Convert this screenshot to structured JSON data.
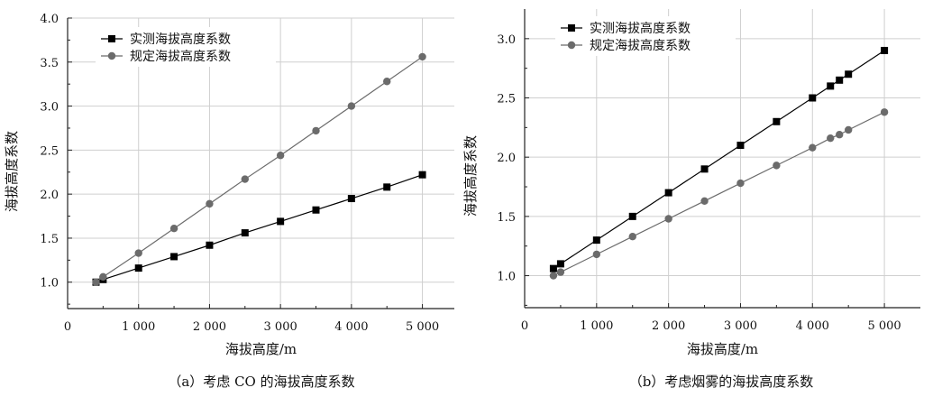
{
  "chart_data": [
    {
      "type": "line",
      "panel": "a",
      "caption": "（a）考虑 CO 的海拔高度系数",
      "xlabel": "海拔高度/m",
      "ylabel": "海拔高度系数",
      "xlim": [
        0,
        5450
      ],
      "ylim": [
        0.7,
        4.0
      ],
      "xticks": [
        0,
        1000,
        2000,
        3000,
        4000,
        5000
      ],
      "xtick_labels": [
        "0",
        "1 000",
        "2 000",
        "3 000",
        "4 000",
        "5 000"
      ],
      "yticks": [
        1.0,
        1.5,
        2.0,
        2.5,
        3.0,
        3.5,
        4.0
      ],
      "ytick_labels": [
        "1.0",
        "1.5",
        "2.0",
        "2.5",
        "3.0",
        "3.5",
        "4.0"
      ],
      "grid": true,
      "legend_position": "top-left",
      "series": [
        {
          "name": "实测海拔高度系数",
          "marker": "square",
          "color": "#000000",
          "x": [
            400,
            500,
            1000,
            1500,
            2000,
            2500,
            3000,
            3500,
            4000,
            4500,
            5000
          ],
          "y": [
            1.0,
            1.03,
            1.16,
            1.29,
            1.42,
            1.56,
            1.69,
            1.82,
            1.95,
            2.08,
            2.22
          ]
        },
        {
          "name": "规定海拔高度系数",
          "marker": "circle",
          "color": "#6b6b6b",
          "x": [
            400,
            500,
            1000,
            1500,
            2000,
            2500,
            3000,
            3500,
            4000,
            4500,
            5000
          ],
          "y": [
            1.0,
            1.06,
            1.33,
            1.61,
            1.89,
            2.17,
            2.44,
            2.72,
            3.0,
            3.28,
            3.56
          ]
        }
      ]
    },
    {
      "type": "line",
      "panel": "b",
      "caption": "（b）考虑烟雾的海拔高度系数",
      "xlabel": "海拔高度/m",
      "ylabel": "海拔高度系数",
      "xlim": [
        0,
        5500
      ],
      "ylim": [
        0.73,
        3.25
      ],
      "xticks": [
        0,
        1000,
        2000,
        3000,
        4000,
        5000
      ],
      "xtick_labels": [
        "0",
        "1 000",
        "2 000",
        "3 000",
        "4 000",
        "5 000"
      ],
      "yticks": [
        1.0,
        1.5,
        2.0,
        2.5,
        3.0
      ],
      "ytick_labels": [
        "1.0",
        "1.5",
        "2.0",
        "2.5",
        "3.0"
      ],
      "grid": true,
      "legend_position": "top-left",
      "series": [
        {
          "name": "实测海拔高度系数",
          "marker": "square",
          "color": "#000000",
          "x": [
            400,
            500,
            1000,
            1500,
            2000,
            2500,
            3000,
            3500,
            4000,
            4250,
            4375,
            4500,
            5000
          ],
          "y": [
            1.06,
            1.1,
            1.3,
            1.5,
            1.7,
            1.9,
            2.1,
            2.3,
            2.5,
            2.6,
            2.65,
            2.7,
            2.9
          ]
        },
        {
          "name": "规定海拔高度系数",
          "marker": "circle",
          "color": "#6b6b6b",
          "x": [
            400,
            500,
            1000,
            1500,
            2000,
            2500,
            3000,
            3500,
            4000,
            4250,
            4375,
            4500,
            5000
          ],
          "y": [
            1.0,
            1.03,
            1.18,
            1.33,
            1.48,
            1.63,
            1.78,
            1.93,
            2.08,
            2.16,
            2.19,
            2.23,
            2.38
          ]
        }
      ]
    }
  ]
}
